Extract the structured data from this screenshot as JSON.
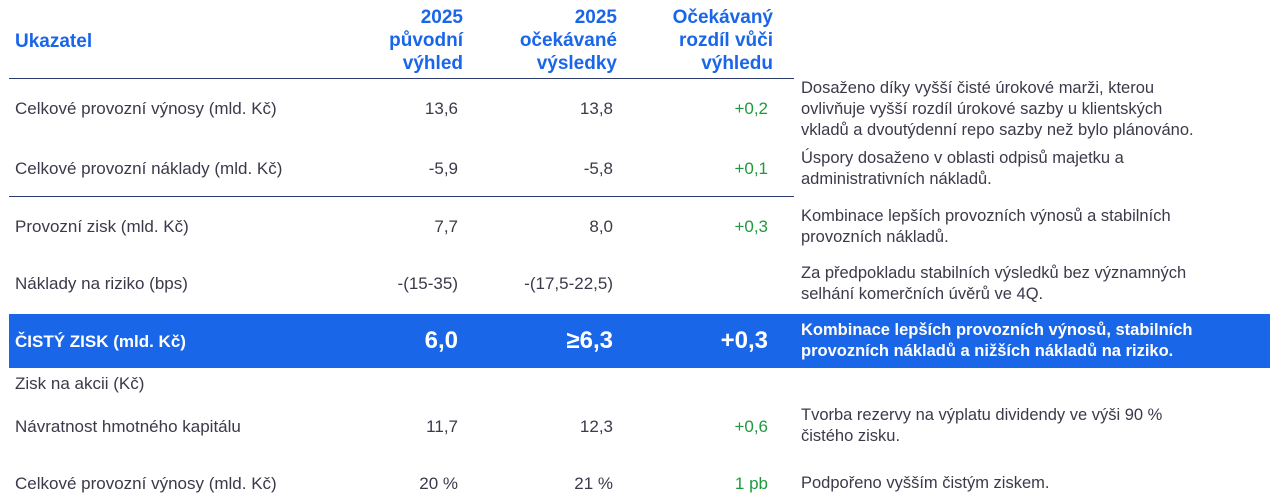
{
  "header": {
    "indicator": "Ukazatel",
    "col1": [
      "2025",
      "původní",
      "výhled"
    ],
    "col2": [
      "2025",
      "očekávané",
      "výsledky"
    ],
    "col3": [
      "Očekávaný",
      "rozdíl vůči",
      "výhledu"
    ]
  },
  "rows": [
    {
      "label": "Celkové provozní výnosy (mld. Kč)",
      "v1": "13,6",
      "v2": "13,8",
      "diff": "+0,2",
      "comment": [
        "Dosaženo díky vyšší čisté úrokové marži, kterou",
        "ovlivňuje vyšší rozdíl úrokové sazby u klientských",
        "vkladů a dvoutýdenní repo sazby než bylo plánováno."
      ]
    },
    {
      "label": "Celkové provozní náklady (mld. Kč)",
      "v1": "-5,9",
      "v2": "-5,8",
      "diff": "+0,1",
      "comment": [
        "Úspory dosaženo v oblasti odpisů majetku a",
        "administrativních nákladů."
      ]
    },
    {
      "label": "Provozní zisk (mld. Kč)",
      "v1": "7,7",
      "v2": "8,0",
      "diff": "+0,3",
      "comment": [
        "Kombinace lepších provozních výnosů a stabilních",
        "provozních nákladů."
      ]
    },
    {
      "label": "Náklady na riziko (bps)",
      "v1": "-(15-35)",
      "v2": "-(17,5-22,5)",
      "diff": "",
      "comment": [
        "Za předpokladu stabilních výsledků bez významných",
        "selhání komerčních úvěrů ve 4Q."
      ]
    },
    {
      "label": "ČISTÝ ZISK (mld. Kč)",
      "v1": "6,0",
      "v2": "≥6,3",
      "diff": "+0,3",
      "comment": [
        "Kombinace lepších provozních výnosů, stabilních",
        "provozních nákladů a nižších nákladů na riziko."
      ]
    },
    {
      "label": "Zisk na akcii (Kč)"
    },
    {
      "label": "Návratnost hmotného kapitálu",
      "v1": "11,7",
      "v2": "12,3",
      "diff": "+0,6",
      "comment": [
        "Tvorba rezervy na výplatu dividendy ve výši 90 %",
        "čistého zisku."
      ]
    },
    {
      "label": "Celkové provozní výnosy (mld. Kč)",
      "v1": "20 %",
      "v2": "21 %",
      "diff": "1 pb",
      "comment": [
        "Podpořeno vyšším čistým ziskem."
      ]
    }
  ],
  "colors": {
    "accent": "#1a66e8",
    "positive": "#1e9a3e",
    "line": "#2d3a6e"
  }
}
